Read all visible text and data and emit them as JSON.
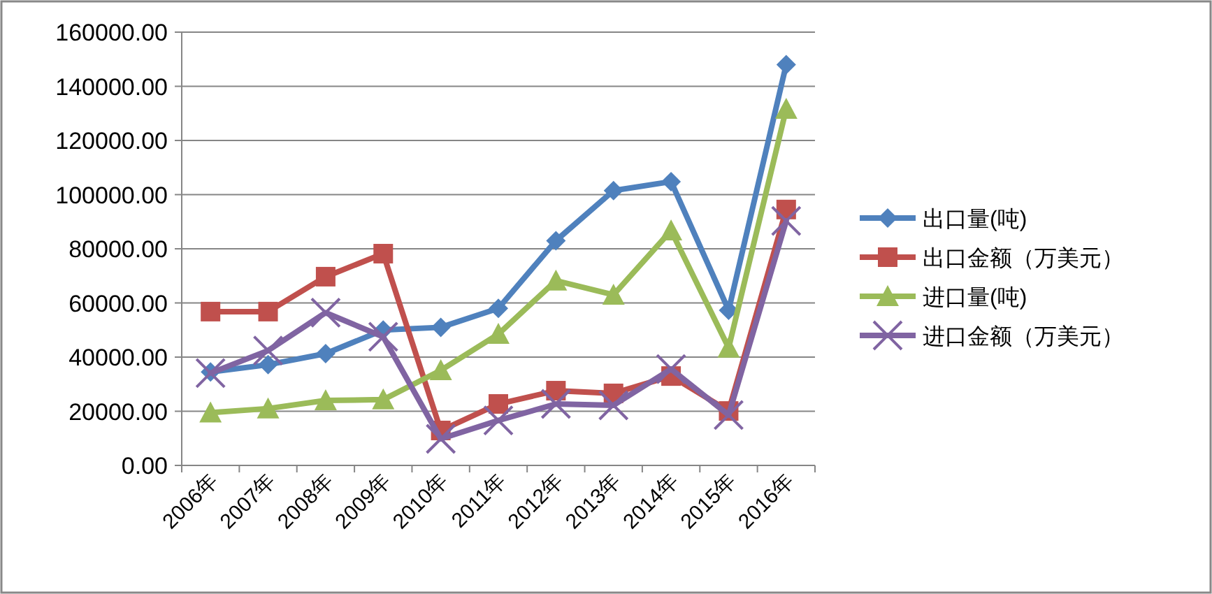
{
  "chart_data": {
    "type": "line",
    "categories": [
      "2006年",
      "2007年",
      "2008年",
      "2009年",
      "2010年",
      "2011年",
      "2012年",
      "2013年",
      "2014年",
      "2015年",
      "2016年"
    ],
    "series": [
      {
        "name": "出口量(吨)",
        "color": "#4f81bd",
        "marker": "diamond",
        "values": [
          34500,
          37200,
          41300,
          50000,
          51000,
          58000,
          83000,
          101500,
          104800,
          57300,
          148000
        ]
      },
      {
        "name": "出口金额（万美元）",
        "color": "#c0504d",
        "marker": "square",
        "values": [
          56800,
          56800,
          69700,
          78200,
          12900,
          22700,
          27600,
          26600,
          33000,
          20100,
          94500
        ]
      },
      {
        "name": "进口量(吨)",
        "color": "#9bbb59",
        "marker": "triangle",
        "values": [
          19500,
          21000,
          24000,
          24300,
          35100,
          48500,
          68200,
          63000,
          86700,
          43400,
          131600
        ]
      },
      {
        "name": "进口金额（万美元）",
        "color": "#8064a2",
        "marker": "cross",
        "values": [
          34100,
          42400,
          56400,
          47500,
          9800,
          16600,
          22700,
          22200,
          35600,
          18600,
          90300
        ]
      }
    ],
    "ylim": [
      0,
      160000
    ],
    "yticks": [
      {
        "value": 0,
        "label": "0.00"
      },
      {
        "value": 20000,
        "label": "20000.00"
      },
      {
        "value": 40000,
        "label": "40000.00"
      },
      {
        "value": 60000,
        "label": "60000.00"
      },
      {
        "value": 80000,
        "label": "80000.00"
      },
      {
        "value": 100000,
        "label": "100000.00"
      },
      {
        "value": 120000,
        "label": "120000.00"
      },
      {
        "value": 140000,
        "label": "140000.00"
      },
      {
        "value": 160000,
        "label": "160000.00"
      }
    ],
    "grid": "y",
    "legend": "right"
  }
}
